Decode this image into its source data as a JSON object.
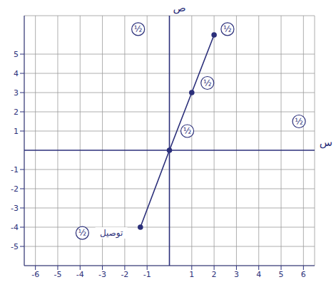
{
  "chart_data": {
    "type": "line",
    "x_label": "س",
    "y_label": "ص",
    "x": [
      -1.3,
      0,
      1,
      2
    ],
    "series": [
      {
        "name": "ص",
        "color": "#2b2f7a",
        "values": [
          -4,
          0,
          3,
          6
        ],
        "marker": "circle"
      }
    ],
    "xlim": [
      -6.5,
      6.5
    ],
    "xticks": [
      -6,
      -5,
      -4,
      -3,
      -2,
      -1,
      1,
      2,
      3,
      4,
      5,
      6
    ],
    "ylim": [
      -6,
      7
    ],
    "yticks": [
      -5,
      -4,
      -3,
      -2,
      -1,
      1,
      2,
      3,
      4,
      5
    ],
    "grid": true,
    "annotations": [
      {
        "text": "½",
        "x": 0.8,
        "y": 1
      },
      {
        "text": "½",
        "x": 1.7,
        "y": 3.5
      },
      {
        "text": "½",
        "x": 2.6,
        "y": 6.3
      },
      {
        "text": "½",
        "x": -1.4,
        "y": 6.3
      },
      {
        "text": "½",
        "x": 5.8,
        "y": 1.5
      },
      {
        "text": "½",
        "x": -3.9,
        "y": -4.3
      },
      {
        "text": "توصيل",
        "x": -2.6,
        "y": -4.3
      }
    ]
  }
}
